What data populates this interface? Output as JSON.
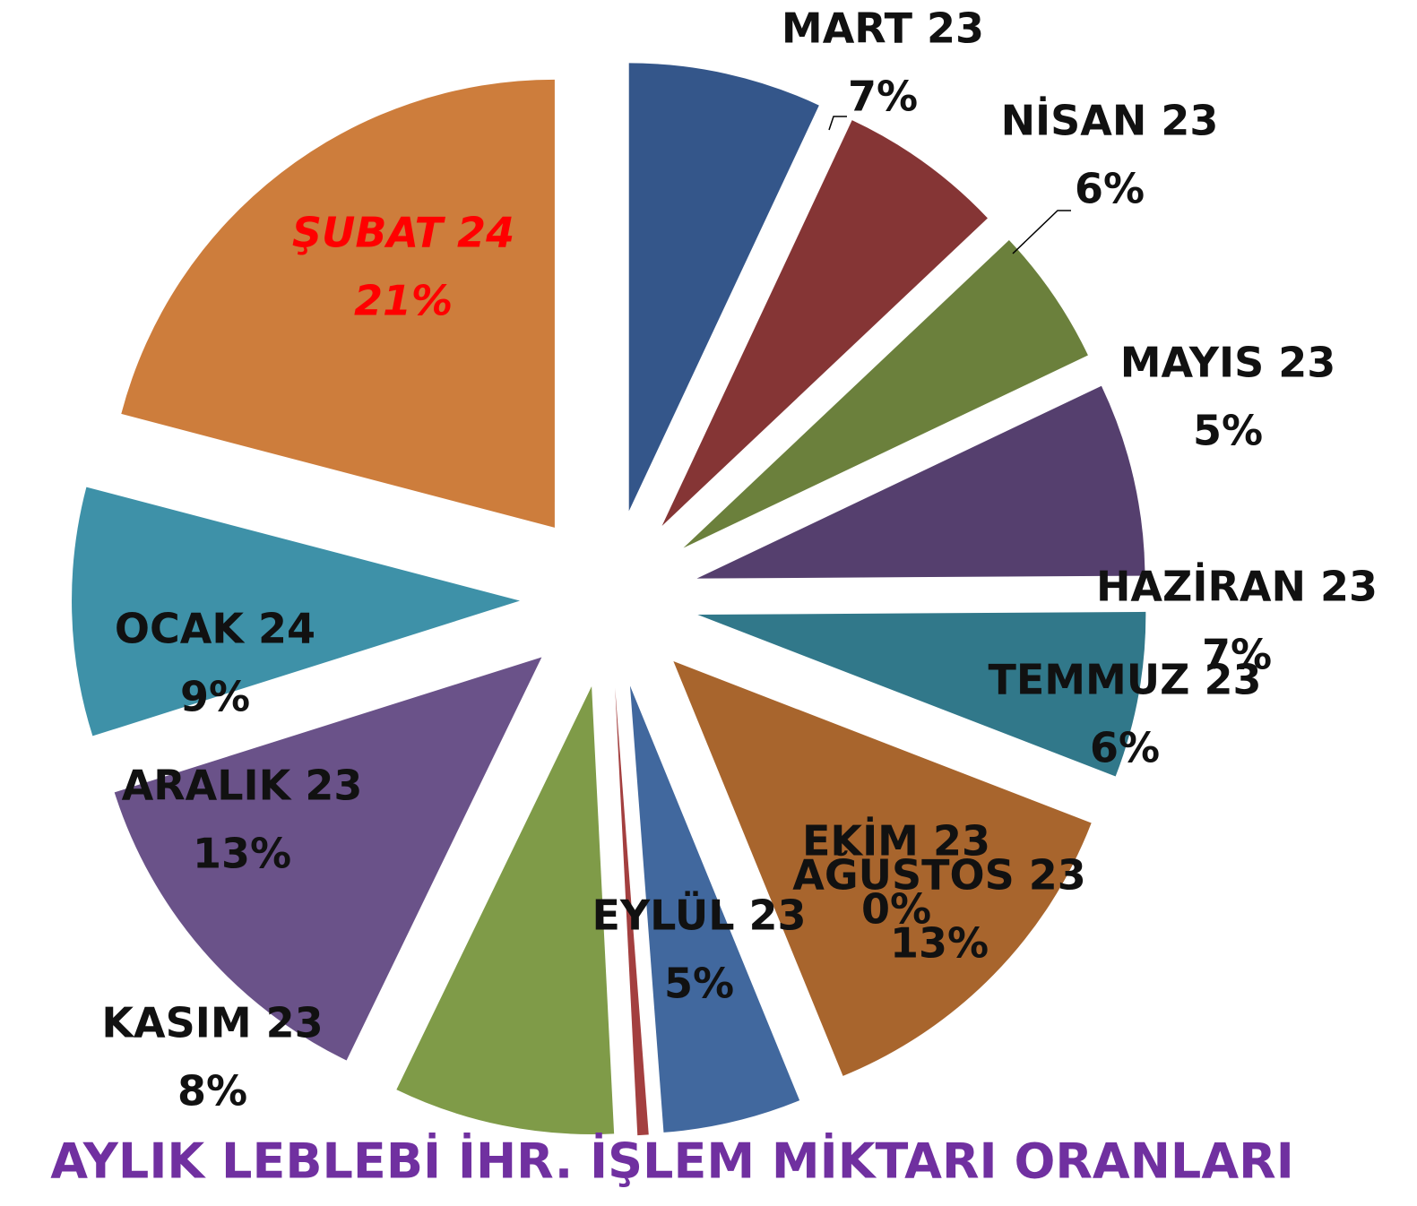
{
  "chart_data": {
    "type": "pie",
    "title": "AYLIK LEBLEBİ İHR. İŞLEM MİKTARI ORANLARI",
    "categories": [
      "MART 23",
      "NİSAN 23",
      "MAYIS 23",
      "HAZİRAN 23",
      "TEMMUZ 23",
      "AĞUSTOS 23",
      "EYLÜL 23",
      "EKİM 23",
      "KASIM 23",
      "ARALIK 23",
      "OCAK 24",
      "ŞUBAT 24"
    ],
    "values": [
      7,
      6,
      5,
      7,
      6,
      13,
      5,
      0.4,
      8,
      13,
      9,
      21
    ],
    "value_labels": [
      "7%",
      "6%",
      "5%",
      "7%",
      "6%",
      "13%",
      "5%",
      "0%",
      "8%",
      "13%",
      "9%",
      "21%"
    ],
    "colors": [
      "#34568a",
      "#853535",
      "#6b803c",
      "#553f6e",
      "#31788a",
      "#a8652d",
      "#41689e",
      "#a33f3f",
      "#7f9b48",
      "#6a5289",
      "#3e91a8",
      "#cd7d3c"
    ]
  }
}
